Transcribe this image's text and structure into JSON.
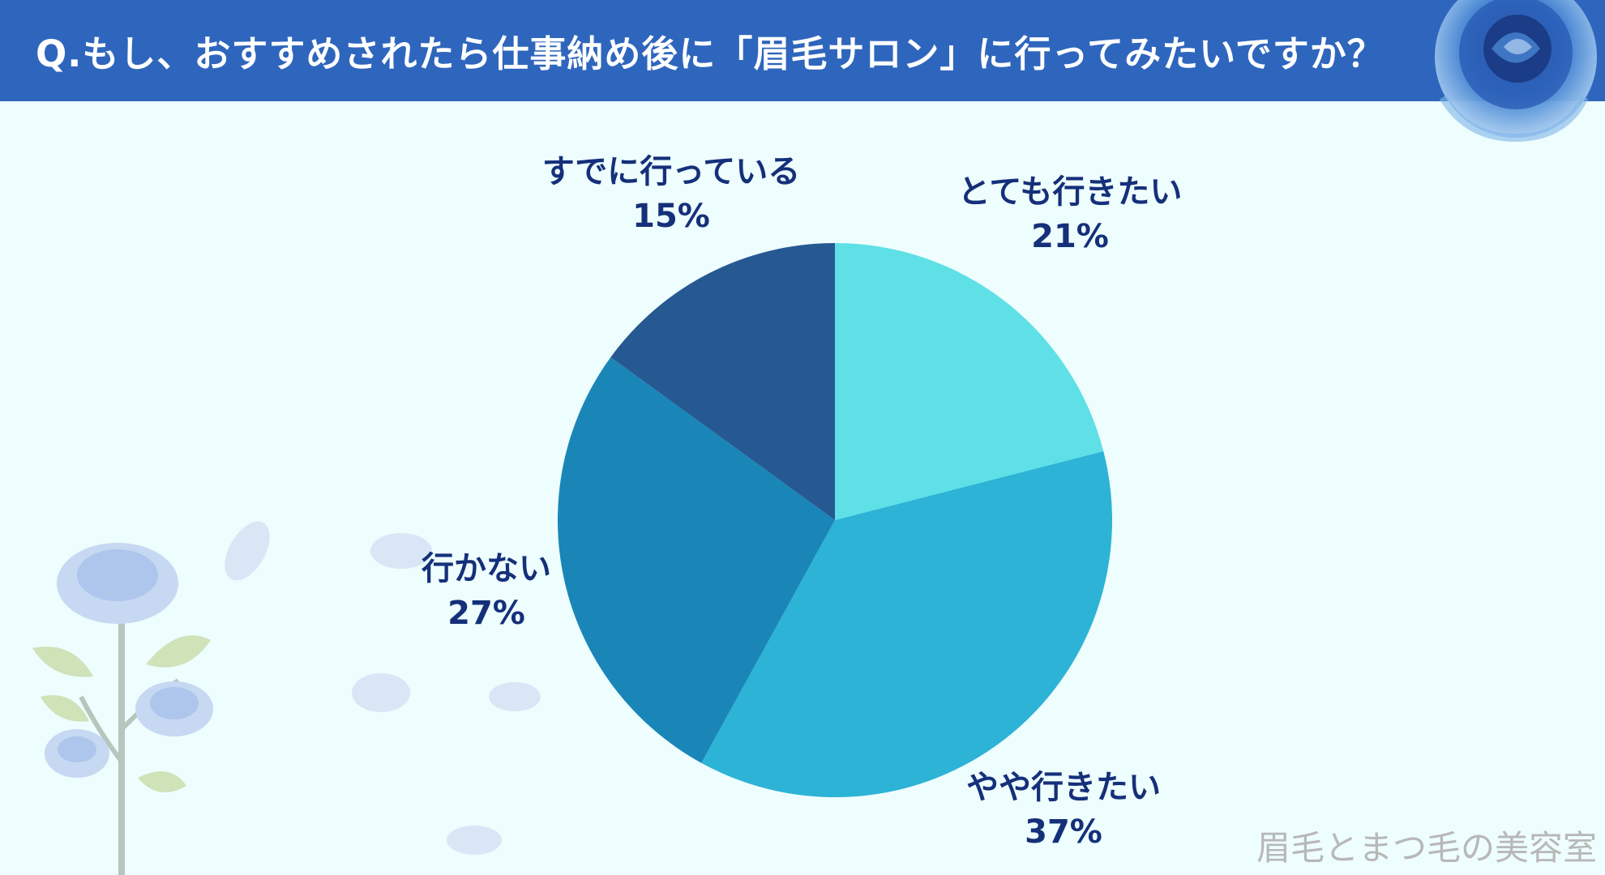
{
  "title": "Q.もし、おすすめされたら仕事納め後に「眉毛サロン」に行ってみたいですか？",
  "watermark": "眉毛とまつ毛の美容室",
  "colors": {
    "header": "#2f66bd",
    "background": "#eefdfd",
    "label": "#15307a"
  },
  "chart_data": {
    "type": "pie",
    "title": "Q.もし、おすすめされたら仕事納め後に「眉毛サロン」に行ってみたいですか？",
    "start": "12 o'clock",
    "direction": "clockwise",
    "slices": [
      {
        "label": "とても行きたい",
        "value": 21,
        "pct_label": "21%",
        "color": "#5ee0e6"
      },
      {
        "label": "やや行きたい",
        "value": 37,
        "pct_label": "37%",
        "color": "#2cb3d6"
      },
      {
        "label": "行かない",
        "value": 27,
        "pct_label": "27%",
        "color": "#1a86b8"
      },
      {
        "label": "すでに行っている",
        "value": 15,
        "pct_label": "15%",
        "color": "#265892"
      }
    ]
  }
}
